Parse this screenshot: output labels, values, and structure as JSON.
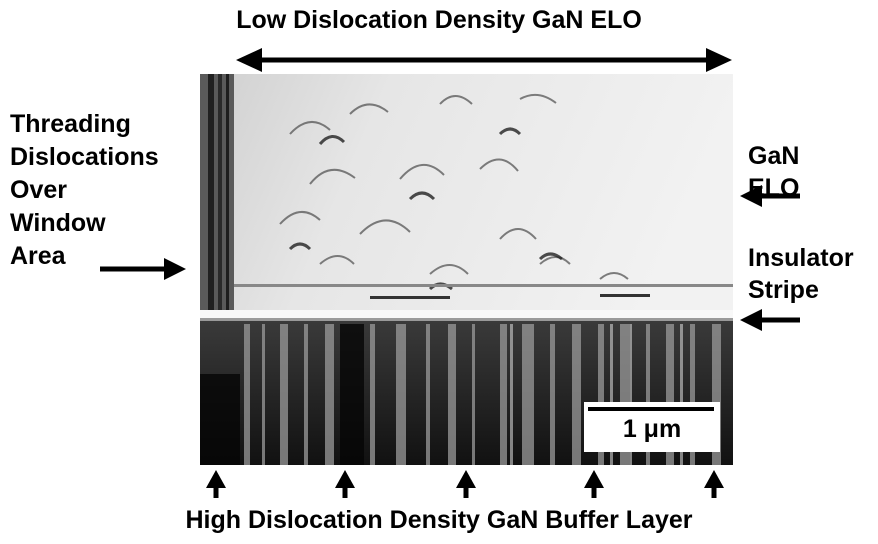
{
  "labels": {
    "top": "Low Dislocation Density GaN ELO",
    "bottom": "High Dislocation Density GaN Buffer Layer",
    "left_lines": [
      "Threading",
      "Dislocations",
      "Over",
      "Window",
      "Area"
    ],
    "right_upper_lines": [
      "GaN",
      "ELO"
    ],
    "right_lower_lines": [
      "Insulator",
      "Stripe"
    ],
    "scale": "1 μm"
  },
  "colors": {
    "ink": "#000000",
    "background": "#ffffff",
    "elo_light": "#e8e8e8",
    "buffer_dark": "#1a1a1a"
  }
}
